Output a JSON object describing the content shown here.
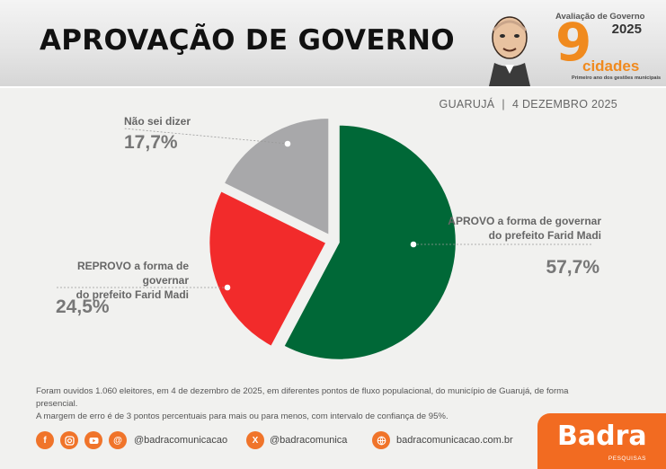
{
  "header": {
    "title": "APROVAÇÃO DE GOVERNO",
    "badge_top": "Avaliação de Governo",
    "badge_year": "2025",
    "badge_number": "9",
    "badge_word": "cidades",
    "badge_sub": "Primeiro ano dos gestões municipais"
  },
  "meta": {
    "city": "GUARUJÁ",
    "separator": "|",
    "date": "4 DEZEMBRO 2025"
  },
  "chart_data": {
    "type": "pie",
    "title": "APROVAÇÃO DE GOVERNO",
    "slices": [
      {
        "label_line1": "APROVO a forma de governar",
        "label_line2": "do prefeito Farid Madi",
        "value": 57.7,
        "display": "57,7%",
        "color": "#006837"
      },
      {
        "label_line1": "REPROVO a forma de governar",
        "label_line2": "do prefeito Farid Madi",
        "value": 24.5,
        "display": "24,5%",
        "color": "#f22b2b"
      },
      {
        "label_line1": "Não sei dizer",
        "label_line2": "",
        "value": 17.7,
        "display": "17,7%",
        "color": "#a8a8aa"
      }
    ]
  },
  "footnote": {
    "line1": "Foram ouvidos 1.060 eleitores, em 4 de dezembro de 2025, em diferentes pontos de fluxo populacional, do município de Guarujá, de forma presencial.",
    "line2": "A margem de erro é de 3 pontos percentuais para mais ou para menos, com intervalo de confiança de 95%."
  },
  "social": {
    "handle_1": "@badracomunicacao",
    "handle_2": "@badracomunica",
    "site": "badracomunicacao.com.br",
    "icons": [
      "facebook-icon",
      "instagram-icon",
      "youtube-icon",
      "threads-icon",
      "x-icon",
      "globe-icon"
    ]
  },
  "brand": {
    "name": "Badra",
    "sub": "PESQUISAS",
    "color": "#f26b21"
  }
}
